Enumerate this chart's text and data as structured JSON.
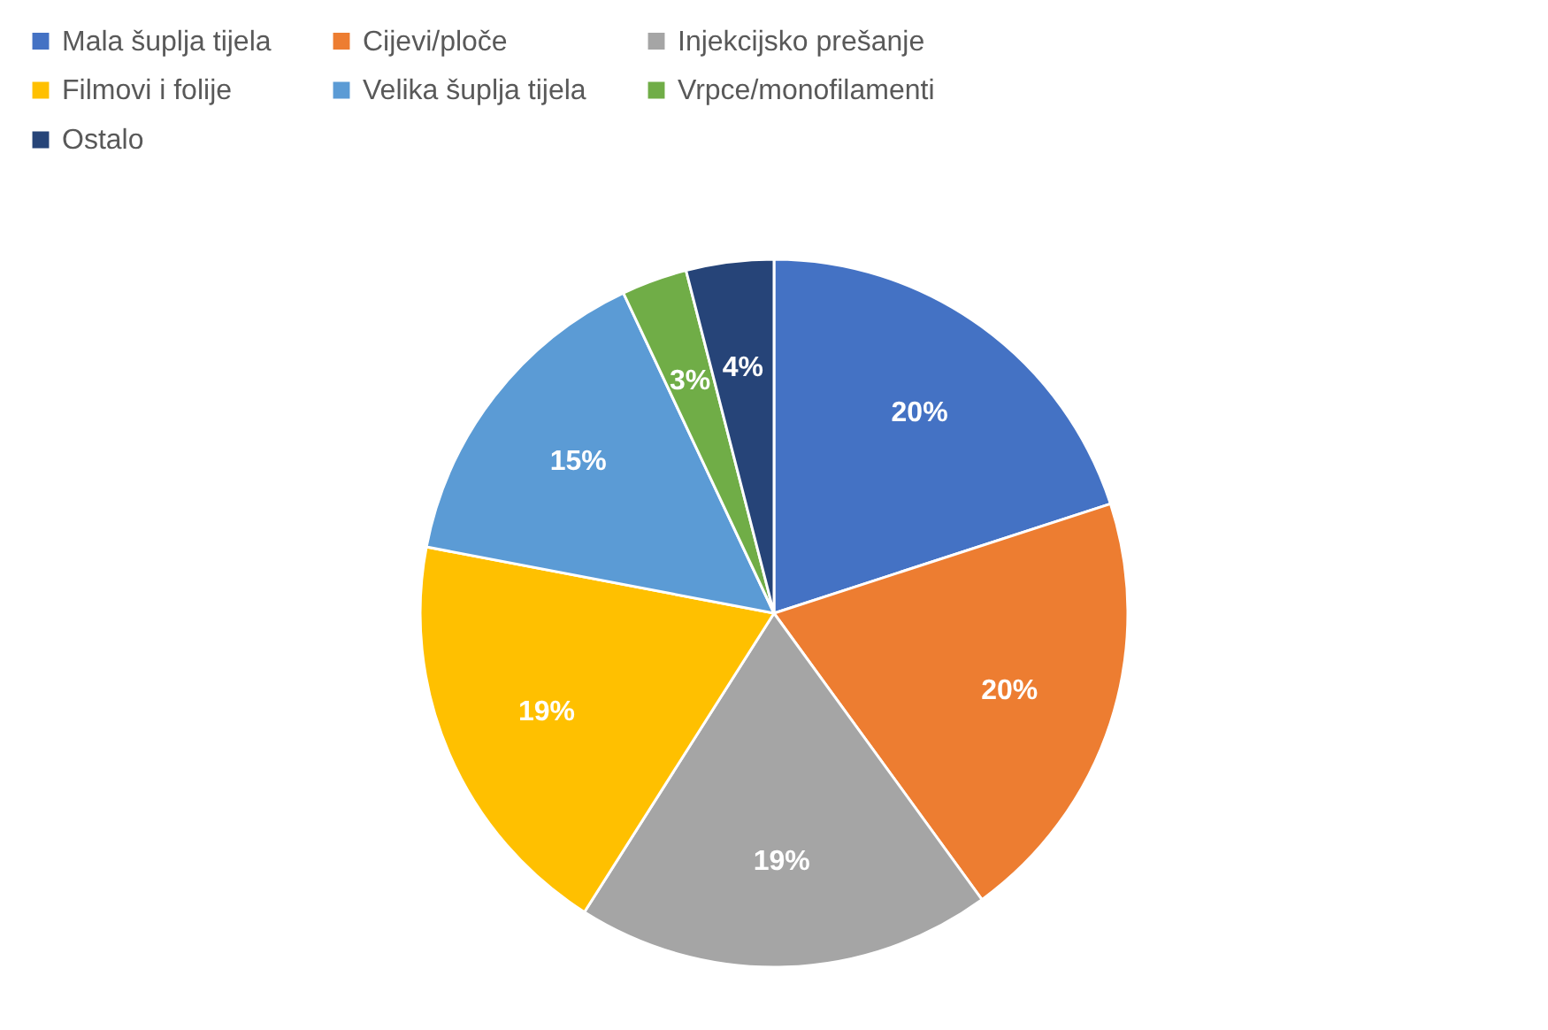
{
  "chart_data": {
    "type": "pie",
    "categories": [
      "Mala šuplja tijela",
      "Cijevi/ploče",
      "Injekcijsko prešanje",
      "Filmovi i folije",
      "Velika šuplja tijela",
      "Vrpce/monofilamenti",
      "Ostalo"
    ],
    "values": [
      20,
      20,
      19,
      19,
      15,
      3,
      4
    ],
    "colors": [
      "#4472c4",
      "#ed7d31",
      "#a5a5a5",
      "#ffc000",
      "#5b9bd5",
      "#70ad47",
      "#264478"
    ],
    "value_labels": [
      "20%",
      "20%",
      "19%",
      "19%",
      "15%",
      "3%",
      "4%"
    ],
    "legend": "top"
  }
}
